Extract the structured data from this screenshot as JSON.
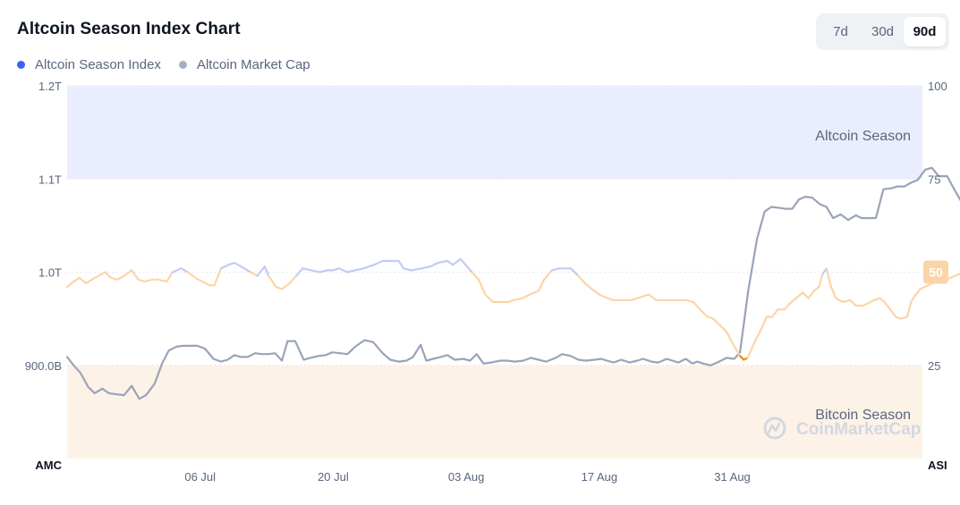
{
  "title": "Altcoin Season Index Chart",
  "ranges": [
    {
      "label": "7d",
      "active": false
    },
    {
      "label": "30d",
      "active": false
    },
    {
      "label": "90d",
      "active": true
    }
  ],
  "legend": [
    {
      "label": "Altcoin Season Index",
      "color": "#3861fb"
    },
    {
      "label": "Altcoin Market Cap",
      "color": "#a6b0c3"
    }
  ],
  "colors": {
    "index_high": "#c3cbf5",
    "index_mid": "#fbd5a8",
    "index_low": "#f08c00",
    "market_cap": "#9aa4b8",
    "altcoin_zone": "#eaedfd",
    "bitcoin_zone": "#fdf2e8",
    "badge": "#fbd5a8"
  },
  "watermark": "CoinMarketCap",
  "chart_data": {
    "type": "line",
    "title": "Altcoin Season Index Chart",
    "left_axis": {
      "name": "AMC",
      "min": 800,
      "max": 1200,
      "ticks": [
        {
          "value": 1200,
          "label": "1.2T"
        },
        {
          "value": 1100,
          "label": "1.1T"
        },
        {
          "value": 1000,
          "label": "1.0T"
        },
        {
          "value": 900,
          "label": "900.0B"
        }
      ]
    },
    "right_axis": {
      "name": "ASI",
      "min": 0,
      "max": 100,
      "ticks": [
        {
          "value": 100,
          "label": "100"
        },
        {
          "value": 75,
          "label": "75"
        },
        {
          "value": 50,
          "label": "50"
        },
        {
          "value": 25,
          "label": "25"
        }
      ]
    },
    "zones": [
      {
        "label": "Altcoin Season",
        "from": 75,
        "to": 100
      },
      {
        "label": "Bitcoin Season",
        "from": 0,
        "to": 25
      }
    ],
    "x_ticks": [
      "06 Jul",
      "20 Jul",
      "03 Aug",
      "17 Aug",
      "31 Aug"
    ],
    "x_tick_days": [
      14,
      28,
      42,
      56,
      70
    ],
    "x_range_days": [
      0,
      90
    ],
    "current_value": "50",
    "series": [
      {
        "name": "Altcoin Season Index",
        "axis": "right",
        "points": [
          [
            0,
            46
          ],
          [
            0.7,
            47.5
          ],
          [
            1.3,
            48.5
          ],
          [
            2,
            47
          ],
          [
            2.6,
            48
          ],
          [
            3.3,
            49
          ],
          [
            4,
            50
          ],
          [
            4.6,
            48.5
          ],
          [
            5.3,
            48
          ],
          [
            6,
            49
          ],
          [
            6.8,
            50.5
          ],
          [
            7.5,
            48
          ],
          [
            8.1,
            47.5
          ],
          [
            9,
            48
          ],
          [
            9.6,
            48
          ],
          [
            10.5,
            47.5
          ],
          [
            11.1,
            50
          ],
          [
            12,
            51
          ],
          [
            12.7,
            50
          ],
          [
            13.5,
            48.5
          ],
          [
            14.2,
            47.5
          ],
          [
            15,
            46.5
          ],
          [
            15.5,
            46.5
          ],
          [
            16.2,
            51
          ],
          [
            17,
            52
          ],
          [
            17.6,
            52.5
          ],
          [
            18.3,
            51.5
          ],
          [
            19.3,
            50
          ],
          [
            20,
            49
          ],
          [
            20.8,
            51.5
          ],
          [
            21.2,
            49
          ],
          [
            22,
            46
          ],
          [
            22.6,
            45.5
          ],
          [
            23.4,
            47
          ],
          [
            24.1,
            49
          ],
          [
            24.8,
            51
          ],
          [
            25.7,
            50.5
          ],
          [
            26.6,
            50
          ],
          [
            27.4,
            50.5
          ],
          [
            28,
            50.5
          ],
          [
            28.6,
            51
          ],
          [
            29.5,
            50
          ],
          [
            30.3,
            50.5
          ],
          [
            31.2,
            51
          ],
          [
            32.3,
            52
          ],
          [
            33.2,
            53
          ],
          [
            34,
            53
          ],
          [
            34.9,
            53
          ],
          [
            35.4,
            51
          ],
          [
            36.2,
            50.5
          ],
          [
            37.3,
            51
          ],
          [
            38.2,
            51.5
          ],
          [
            39,
            52.5
          ],
          [
            40,
            53
          ],
          [
            40.6,
            52
          ],
          [
            41.4,
            53.5
          ],
          [
            42.6,
            50
          ],
          [
            43.3,
            48
          ],
          [
            44,
            44
          ],
          [
            44.8,
            42
          ],
          [
            45.6,
            42
          ],
          [
            46.4,
            42
          ],
          [
            47,
            42.5
          ],
          [
            47.9,
            43
          ],
          [
            48.7,
            44
          ],
          [
            49.6,
            45
          ],
          [
            50.2,
            48
          ],
          [
            51,
            50.5
          ],
          [
            51.8,
            51
          ],
          [
            53,
            51
          ],
          [
            53.8,
            49
          ],
          [
            54.5,
            47
          ],
          [
            55.2,
            45.5
          ],
          [
            56,
            44
          ],
          [
            56.9,
            43
          ],
          [
            57.5,
            42.5
          ],
          [
            58.4,
            42.5
          ],
          [
            59.3,
            42.5
          ],
          [
            60,
            43
          ],
          [
            60.6,
            43.5
          ],
          [
            61.2,
            44
          ],
          [
            62,
            42.5
          ],
          [
            63.4,
            42.5
          ],
          [
            64.4,
            42.5
          ],
          [
            65.2,
            42.5
          ],
          [
            65.9,
            42
          ],
          [
            66.6,
            40
          ],
          [
            67.4,
            38
          ],
          [
            68,
            37.5
          ],
          [
            68.6,
            36
          ],
          [
            69.4,
            34
          ],
          [
            70,
            31
          ],
          [
            70.8,
            27.5
          ],
          [
            71.2,
            26.5
          ],
          [
            71.6,
            27
          ],
          [
            72.4,
            31.5
          ],
          [
            73,
            34.5
          ],
          [
            73.6,
            38
          ],
          [
            74.2,
            38
          ],
          [
            74.8,
            40
          ],
          [
            75.5,
            40
          ],
          [
            76,
            41.5
          ],
          [
            76.7,
            43
          ],
          [
            77.4,
            44.5
          ],
          [
            78,
            43
          ],
          [
            78.6,
            45
          ],
          [
            79.1,
            46
          ],
          [
            79.5,
            49.5
          ],
          [
            79.9,
            51
          ],
          [
            80.4,
            46
          ],
          [
            80.9,
            43
          ],
          [
            81.6,
            42
          ],
          [
            82.4,
            42.5
          ],
          [
            83,
            41
          ],
          [
            83.7,
            41
          ],
          [
            84.2,
            41.5
          ],
          [
            84.9,
            42.5
          ],
          [
            85.5,
            43
          ],
          [
            86,
            42
          ],
          [
            86.6,
            40
          ],
          [
            87.2,
            38
          ],
          [
            87.7,
            37.5
          ],
          [
            88.4,
            38
          ],
          [
            88.8,
            42
          ],
          [
            89.3,
            44
          ],
          [
            89.8,
            45.5
          ],
          [
            90.6,
            46.5
          ],
          [
            91.5,
            47.5
          ],
          [
            92.3,
            48
          ],
          [
            93,
            48.5
          ],
          [
            93.8,
            49.5
          ],
          [
            94.4,
            49.5
          ],
          [
            95,
            49.5
          ],
          [
            95.6,
            50
          ],
          [
            96,
            50
          ],
          [
            97,
            50
          ],
          [
            98,
            50
          ],
          [
            100,
            50
          ]
        ]
      },
      {
        "name": "Altcoin Market Cap",
        "axis": "left",
        "points": [
          [
            0,
            909
          ],
          [
            0.7,
            900
          ],
          [
            1.4,
            892
          ],
          [
            2.2,
            877
          ],
          [
            2.9,
            870
          ],
          [
            3.7,
            875
          ],
          [
            4.4,
            870
          ],
          [
            5.2,
            869
          ],
          [
            6,
            868
          ],
          [
            6.8,
            878
          ],
          [
            7.6,
            864
          ],
          [
            8.3,
            868
          ],
          [
            9.2,
            880
          ],
          [
            10,
            902
          ],
          [
            10.7,
            916
          ],
          [
            11.5,
            920
          ],
          [
            12.2,
            921
          ],
          [
            12.9,
            921
          ],
          [
            13.7,
            921
          ],
          [
            14.5,
            918
          ],
          [
            15.4,
            907
          ],
          [
            16.2,
            904
          ],
          [
            16.9,
            906
          ],
          [
            17.6,
            911
          ],
          [
            18.3,
            909
          ],
          [
            19,
            909
          ],
          [
            19.8,
            913
          ],
          [
            20.5,
            912
          ],
          [
            21.2,
            912
          ],
          [
            21.9,
            913
          ],
          [
            22.6,
            905
          ],
          [
            23.2,
            926
          ],
          [
            24,
            926
          ],
          [
            24.9,
            906
          ],
          [
            25.6,
            908
          ],
          [
            26.4,
            910
          ],
          [
            27.2,
            911
          ],
          [
            27.9,
            914
          ],
          [
            28.7,
            913
          ],
          [
            29.5,
            912
          ],
          [
            30.3,
            920
          ],
          [
            31.3,
            927
          ],
          [
            32.2,
            925
          ],
          [
            33.2,
            913
          ],
          [
            34,
            906
          ],
          [
            34.9,
            904
          ],
          [
            35.7,
            905
          ],
          [
            36.4,
            909
          ],
          [
            37.2,
            922
          ],
          [
            37.8,
            905
          ],
          [
            38.5,
            907
          ],
          [
            39.3,
            909
          ],
          [
            40,
            911
          ],
          [
            40.8,
            906
          ],
          [
            41.7,
            907
          ],
          [
            42.4,
            905
          ],
          [
            43.1,
            912
          ],
          [
            43.8,
            902
          ],
          [
            44.6,
            903
          ],
          [
            45.6,
            905
          ],
          [
            46.3,
            905
          ],
          [
            47.1,
            904
          ],
          [
            48,
            905
          ],
          [
            48.8,
            908
          ],
          [
            49.6,
            906
          ],
          [
            50.4,
            904
          ],
          [
            51.4,
            908
          ],
          [
            52.1,
            912
          ],
          [
            53,
            910
          ],
          [
            53.8,
            906
          ],
          [
            54.6,
            905
          ],
          [
            55.5,
            906
          ],
          [
            56.2,
            907
          ],
          [
            56.8,
            905
          ],
          [
            57.5,
            903
          ],
          [
            58.3,
            906
          ],
          [
            59.2,
            903
          ],
          [
            60,
            905
          ],
          [
            60.6,
            907
          ],
          [
            61.5,
            904
          ],
          [
            62.2,
            903
          ],
          [
            63.1,
            907
          ],
          [
            64.3,
            903
          ],
          [
            65.1,
            907
          ],
          [
            65.8,
            902
          ],
          [
            66.3,
            904
          ],
          [
            66.9,
            902
          ],
          [
            67.7,
            900
          ],
          [
            68.4,
            903
          ],
          [
            69.4,
            908
          ],
          [
            70.2,
            907
          ],
          [
            70.8,
            914
          ],
          [
            71.7,
            982
          ],
          [
            72.6,
            1036
          ],
          [
            73.4,
            1065
          ],
          [
            74.1,
            1070
          ],
          [
            75,
            1069
          ],
          [
            75.6,
            1068
          ],
          [
            76.3,
            1068
          ],
          [
            77,
            1078
          ],
          [
            77.7,
            1081
          ],
          [
            78.4,
            1080
          ],
          [
            79.2,
            1073
          ],
          [
            79.9,
            1070
          ],
          [
            80.6,
            1058
          ],
          [
            81.4,
            1062
          ],
          [
            82.2,
            1056
          ],
          [
            83,
            1061
          ],
          [
            83.6,
            1058
          ],
          [
            84.2,
            1058
          ],
          [
            85.1,
            1058
          ],
          [
            85.9,
            1089
          ],
          [
            86.7,
            1090
          ],
          [
            87.4,
            1092
          ],
          [
            88.1,
            1092
          ],
          [
            88.8,
            1096
          ],
          [
            89.5,
            1099
          ],
          [
            90.3,
            1110
          ],
          [
            91,
            1112
          ],
          [
            91.7,
            1103
          ],
          [
            92.6,
            1103
          ],
          [
            93.4,
            1088
          ],
          [
            94.3,
            1072
          ],
          [
            95.1,
            1081
          ],
          [
            95.9,
            1091
          ],
          [
            96.6,
            1095
          ],
          [
            97.4,
            1087
          ],
          [
            98,
            1087
          ],
          [
            98.7,
            1074
          ],
          [
            99.3,
            1080
          ],
          [
            100,
            1070
          ],
          [
            100,
            1070
          ]
        ]
      }
    ]
  }
}
